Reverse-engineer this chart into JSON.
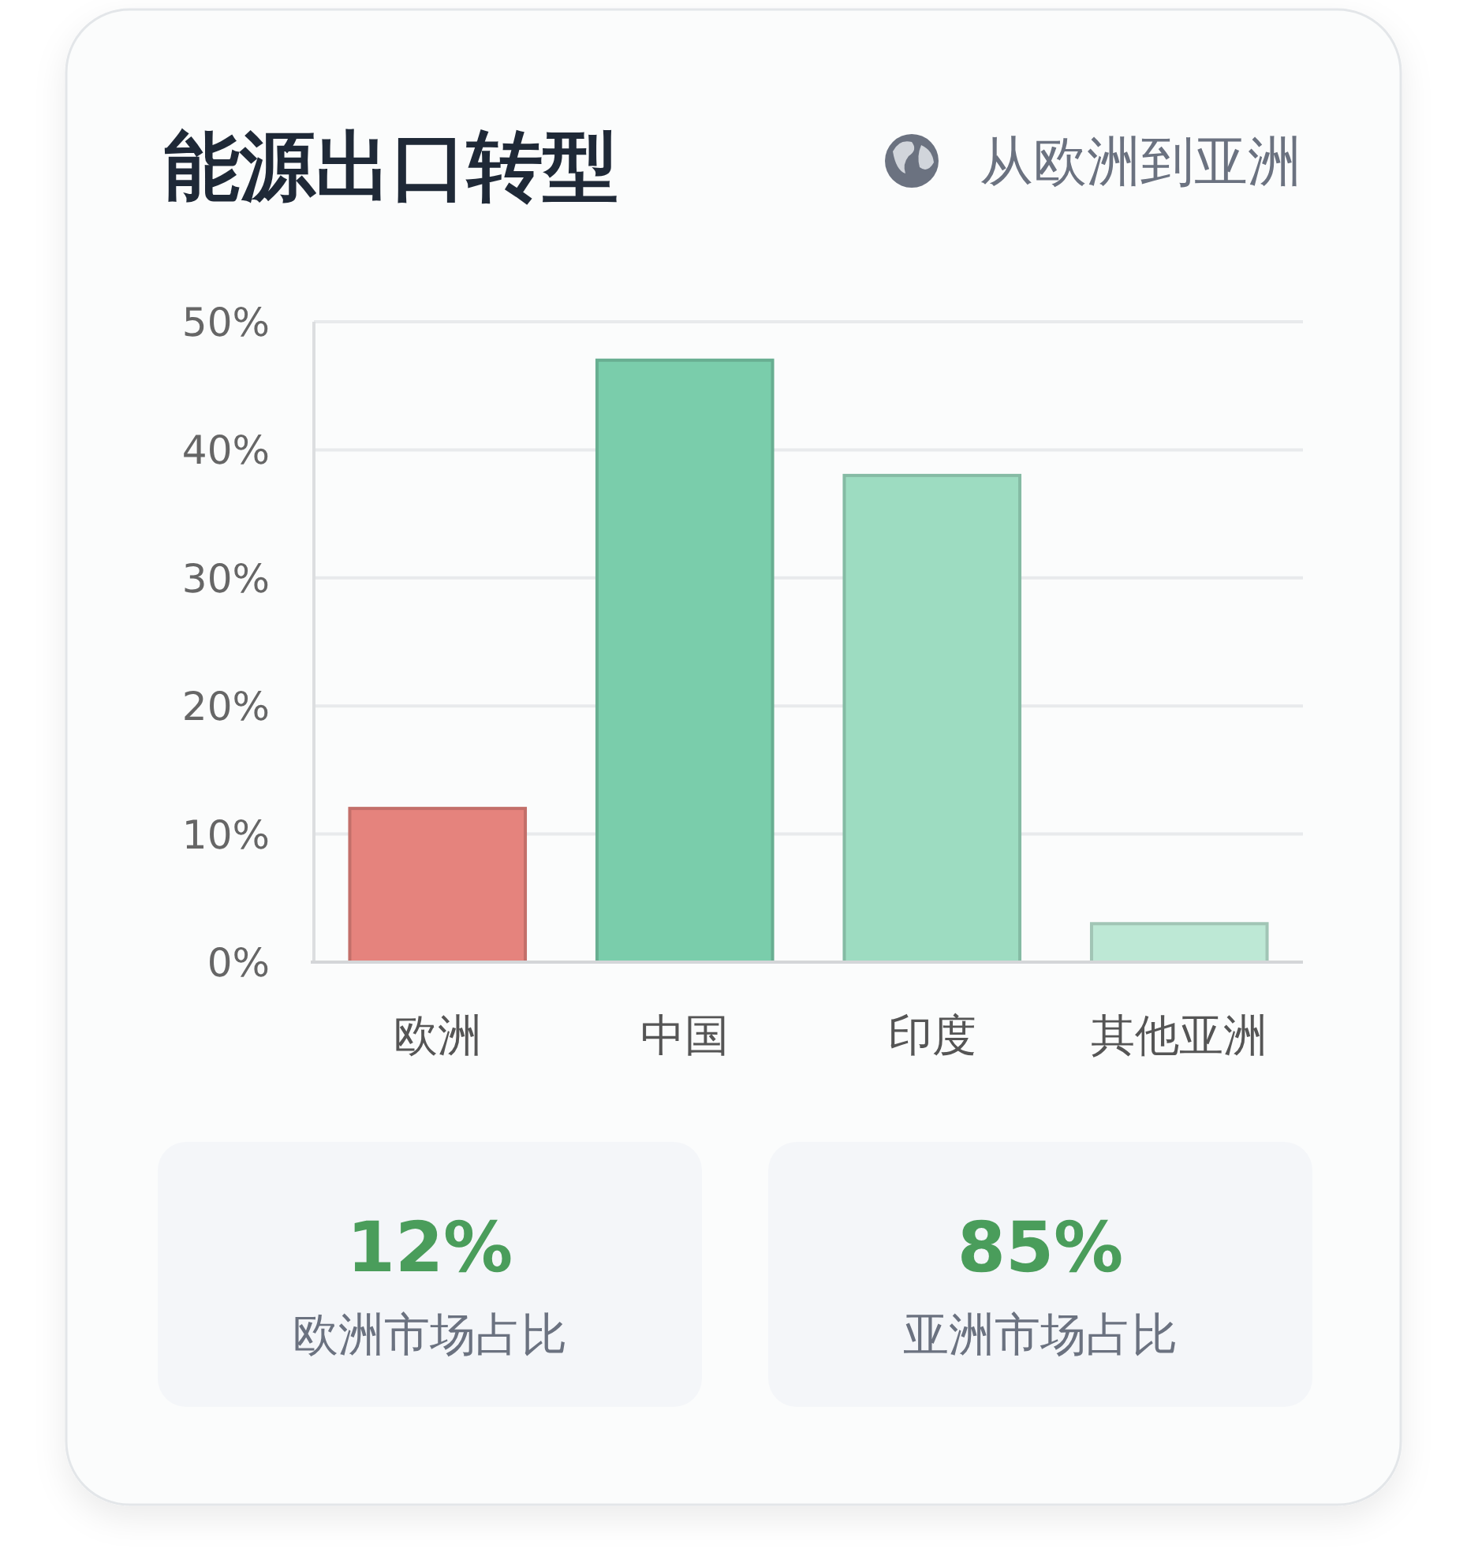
{
  "chart_data": {
    "type": "bar",
    "title": "能源出口转型",
    "subtitle": "从欧洲到亚洲",
    "categories": [
      "欧洲",
      "中国",
      "印度",
      "其他亚洲"
    ],
    "values": [
      12,
      47,
      38,
      3
    ],
    "colors": [
      "#e5837d",
      "#7acdab",
      "#9ddcc1",
      "#bde8d5"
    ],
    "ylim": [
      0,
      50
    ],
    "yticks": [
      {
        "value": 0,
        "label": "0%"
      },
      {
        "value": 10,
        "label": "10%"
      },
      {
        "value": 20,
        "label": "20%"
      },
      {
        "value": 30,
        "label": "30%"
      },
      {
        "value": 40,
        "label": "40%"
      },
      {
        "value": 50,
        "label": "50%"
      }
    ],
    "grid": "y",
    "annotations": [
      "12%",
      "欧洲市场占比",
      "85%",
      "亚洲市场占比"
    ]
  }
}
